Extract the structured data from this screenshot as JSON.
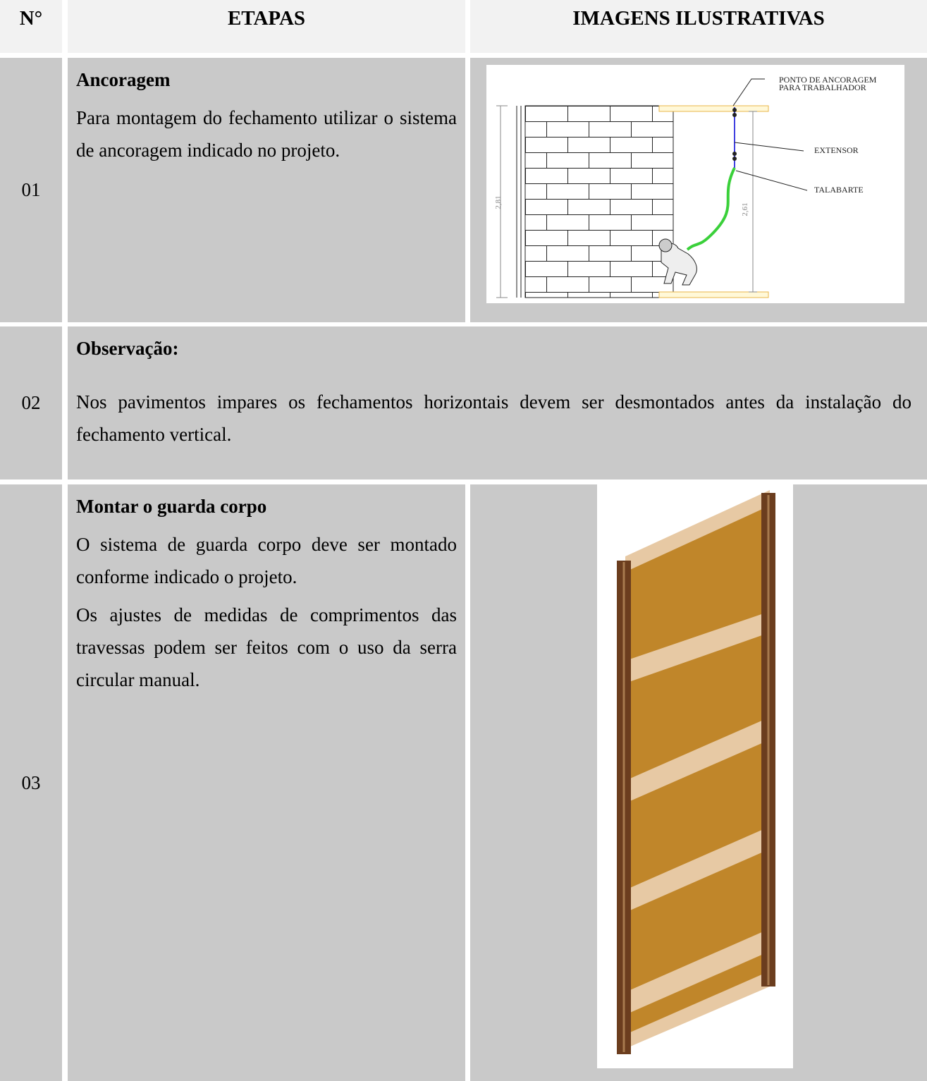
{
  "header": {
    "number": "N°",
    "steps": "ETAPAS",
    "images": "IMAGENS ILUSTRATIVAS"
  },
  "rows": [
    {
      "number": "01",
      "title": "Ancoragem",
      "paragraphs": [
        "Para montagem do fechamento utilizar o sistema de ancoragem indicado no projeto."
      ],
      "figure": {
        "anchor_point": [
          "PONTO DE ANCORAGEM",
          "PARA TRABALHADOR"
        ],
        "extender": "EXTENSOR",
        "lanyard": "TALABARTE",
        "height_total": "2,81",
        "height_free": "2,61"
      }
    },
    {
      "number": "02",
      "title": "Observação:",
      "paragraphs": [
        "Nos pavimentos impares os fechamentos horizontais devem ser desmontados antes da instalação do fechamento vertical."
      ]
    },
    {
      "number": "03",
      "title": "Montar o guarda corpo",
      "paragraphs": [
        "O sistema de guarda corpo deve ser montado conforme indicado o projeto.",
        "Os ajustes de medidas de comprimentos das travessas podem ser feitos com o uso da serra circular manual."
      ]
    }
  ]
}
